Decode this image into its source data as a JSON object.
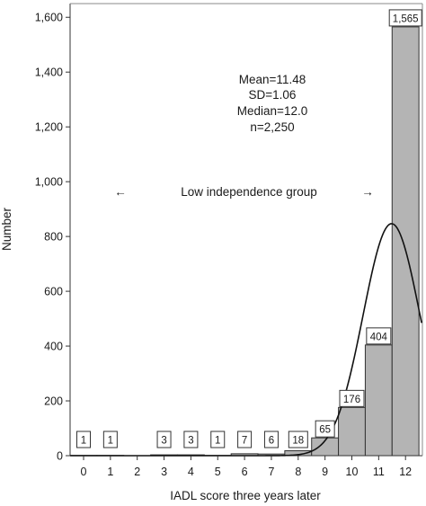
{
  "chart_data": {
    "type": "bar",
    "categories": [
      "0",
      "1",
      "2",
      "3",
      "4",
      "5",
      "6",
      "7",
      "8",
      "9",
      "10",
      "11",
      "12"
    ],
    "values": [
      1,
      1,
      0,
      3,
      3,
      1,
      7,
      6,
      18,
      65,
      176,
      404,
      1565
    ],
    "data_labels": [
      "1",
      "1",
      "",
      "3",
      "3",
      "1",
      "7",
      "6",
      "18",
      "65",
      "176",
      "404",
      "1,565"
    ],
    "xlabel": "IADL score three years later",
    "ylabel": "Number",
    "ylim": [
      0,
      1650
    ],
    "yticks": [
      0,
      200,
      400,
      600,
      800,
      1000,
      1200,
      1400,
      1600
    ],
    "ytick_labels": [
      "0",
      "200",
      "400",
      "600",
      "800",
      "1,000",
      "1,200",
      "1,400",
      "1,600"
    ],
    "grid": false,
    "bar_color": "#b4b4b4",
    "annotations": {
      "stats": [
        "Mean=11.48",
        "SD=1.06",
        "Median=12.0",
        "n=2,250"
      ],
      "group_label": "Low independence group",
      "left_arrow": "←",
      "right_arrow": "→"
    },
    "normal_curve": {
      "mean": 11.48,
      "sd": 1.06,
      "n": 2250
    }
  }
}
